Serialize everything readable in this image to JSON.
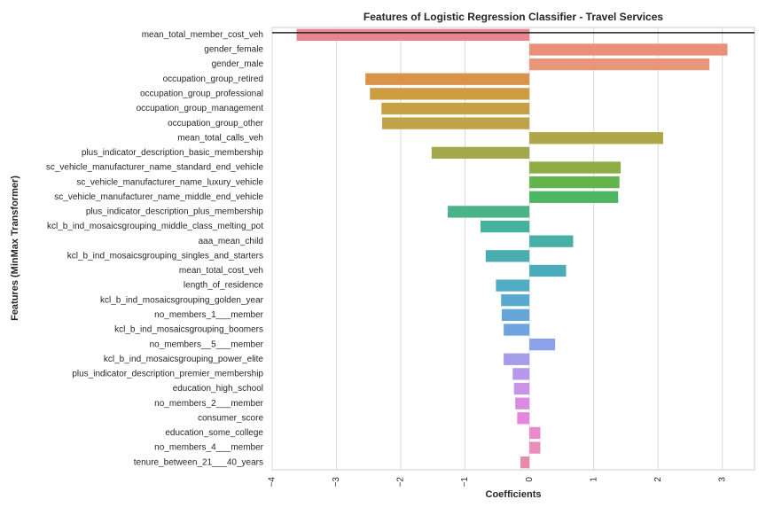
{
  "chart_data": {
    "type": "bar",
    "orientation": "horizontal",
    "title": "Features of Logistic Regression Classifier - Travel Services",
    "xlabel": "Coefficients",
    "ylabel": "Features (MinMax Transformer)",
    "xlim": [
      -4,
      3.5
    ],
    "xticks": [
      -4,
      -3,
      -2,
      -1,
      0,
      1,
      2,
      3
    ],
    "grid": "vertical",
    "legend": "none",
    "categories": [
      "mean_total_member_cost_veh",
      "gender_female",
      "gender_male",
      "occupation_group_retired",
      "occupation_group_professional",
      "occupation_group_management",
      "occupation_group_other",
      "mean_total_calls_veh",
      "plus_indicator_description_basic_membership",
      "sc_vehicle_manufacturer_name_standard_end_vehicle",
      "sc_vehicle_manufacturer_name_luxury_vehicle",
      "sc_vehicle_manufacturer_name_middle_end_vehicle",
      "plus_indicator_description_plus_membership",
      "kcl_b_ind_mosaicsgrouping_middle_class_melting_pot",
      "aaa_mean_child",
      "kcl_b_ind_mosaicsgrouping_singles_and_starters",
      "mean_total_cost_veh",
      "length_of_residence",
      "kcl_b_ind_mosaicsgrouping_golden_year",
      "no_members_1___member",
      "kcl_b_ind_mosaicsgrouping_boomers",
      "no_members__5___member",
      "kcl_b_ind_mosaicsgrouping_power_elite",
      "plus_indicator_description_premier_membership",
      "education_high_school",
      "no_members_2___member",
      "consumer_score",
      "education_some_college",
      "no_members_4___member",
      "tenure_between_21___40_years"
    ],
    "values": [
      -3.62,
      3.08,
      2.8,
      -2.55,
      -2.48,
      -2.3,
      -2.29,
      2.08,
      -1.52,
      1.42,
      1.4,
      1.38,
      -1.27,
      -0.76,
      0.68,
      -0.68,
      0.57,
      -0.52,
      -0.44,
      -0.43,
      -0.4,
      0.4,
      -0.4,
      -0.26,
      -0.24,
      -0.22,
      -0.19,
      0.17,
      0.17,
      -0.14
    ],
    "colors": [
      "#e9858e",
      "#e98f7a",
      "#e8967a",
      "#d9934a",
      "#cc9c3f",
      "#c5a044",
      "#bea348",
      "#afa648",
      "#a3a74c",
      "#8fac47",
      "#63b44a",
      "#4db665",
      "#4ab388",
      "#47b29c",
      "#48b0a7",
      "#4aaeb0",
      "#4badba",
      "#50abc4",
      "#59a9cd",
      "#65a6d7",
      "#6fa2e0",
      "#8ba1ea",
      "#a59cea",
      "#b898ea",
      "#c993e7",
      "#d98ce2",
      "#e685de",
      "#e98acb",
      "#ea8dbd",
      "#e889ad"
    ],
    "reference_line": {
      "at": "top",
      "color": "#222222"
    }
  }
}
